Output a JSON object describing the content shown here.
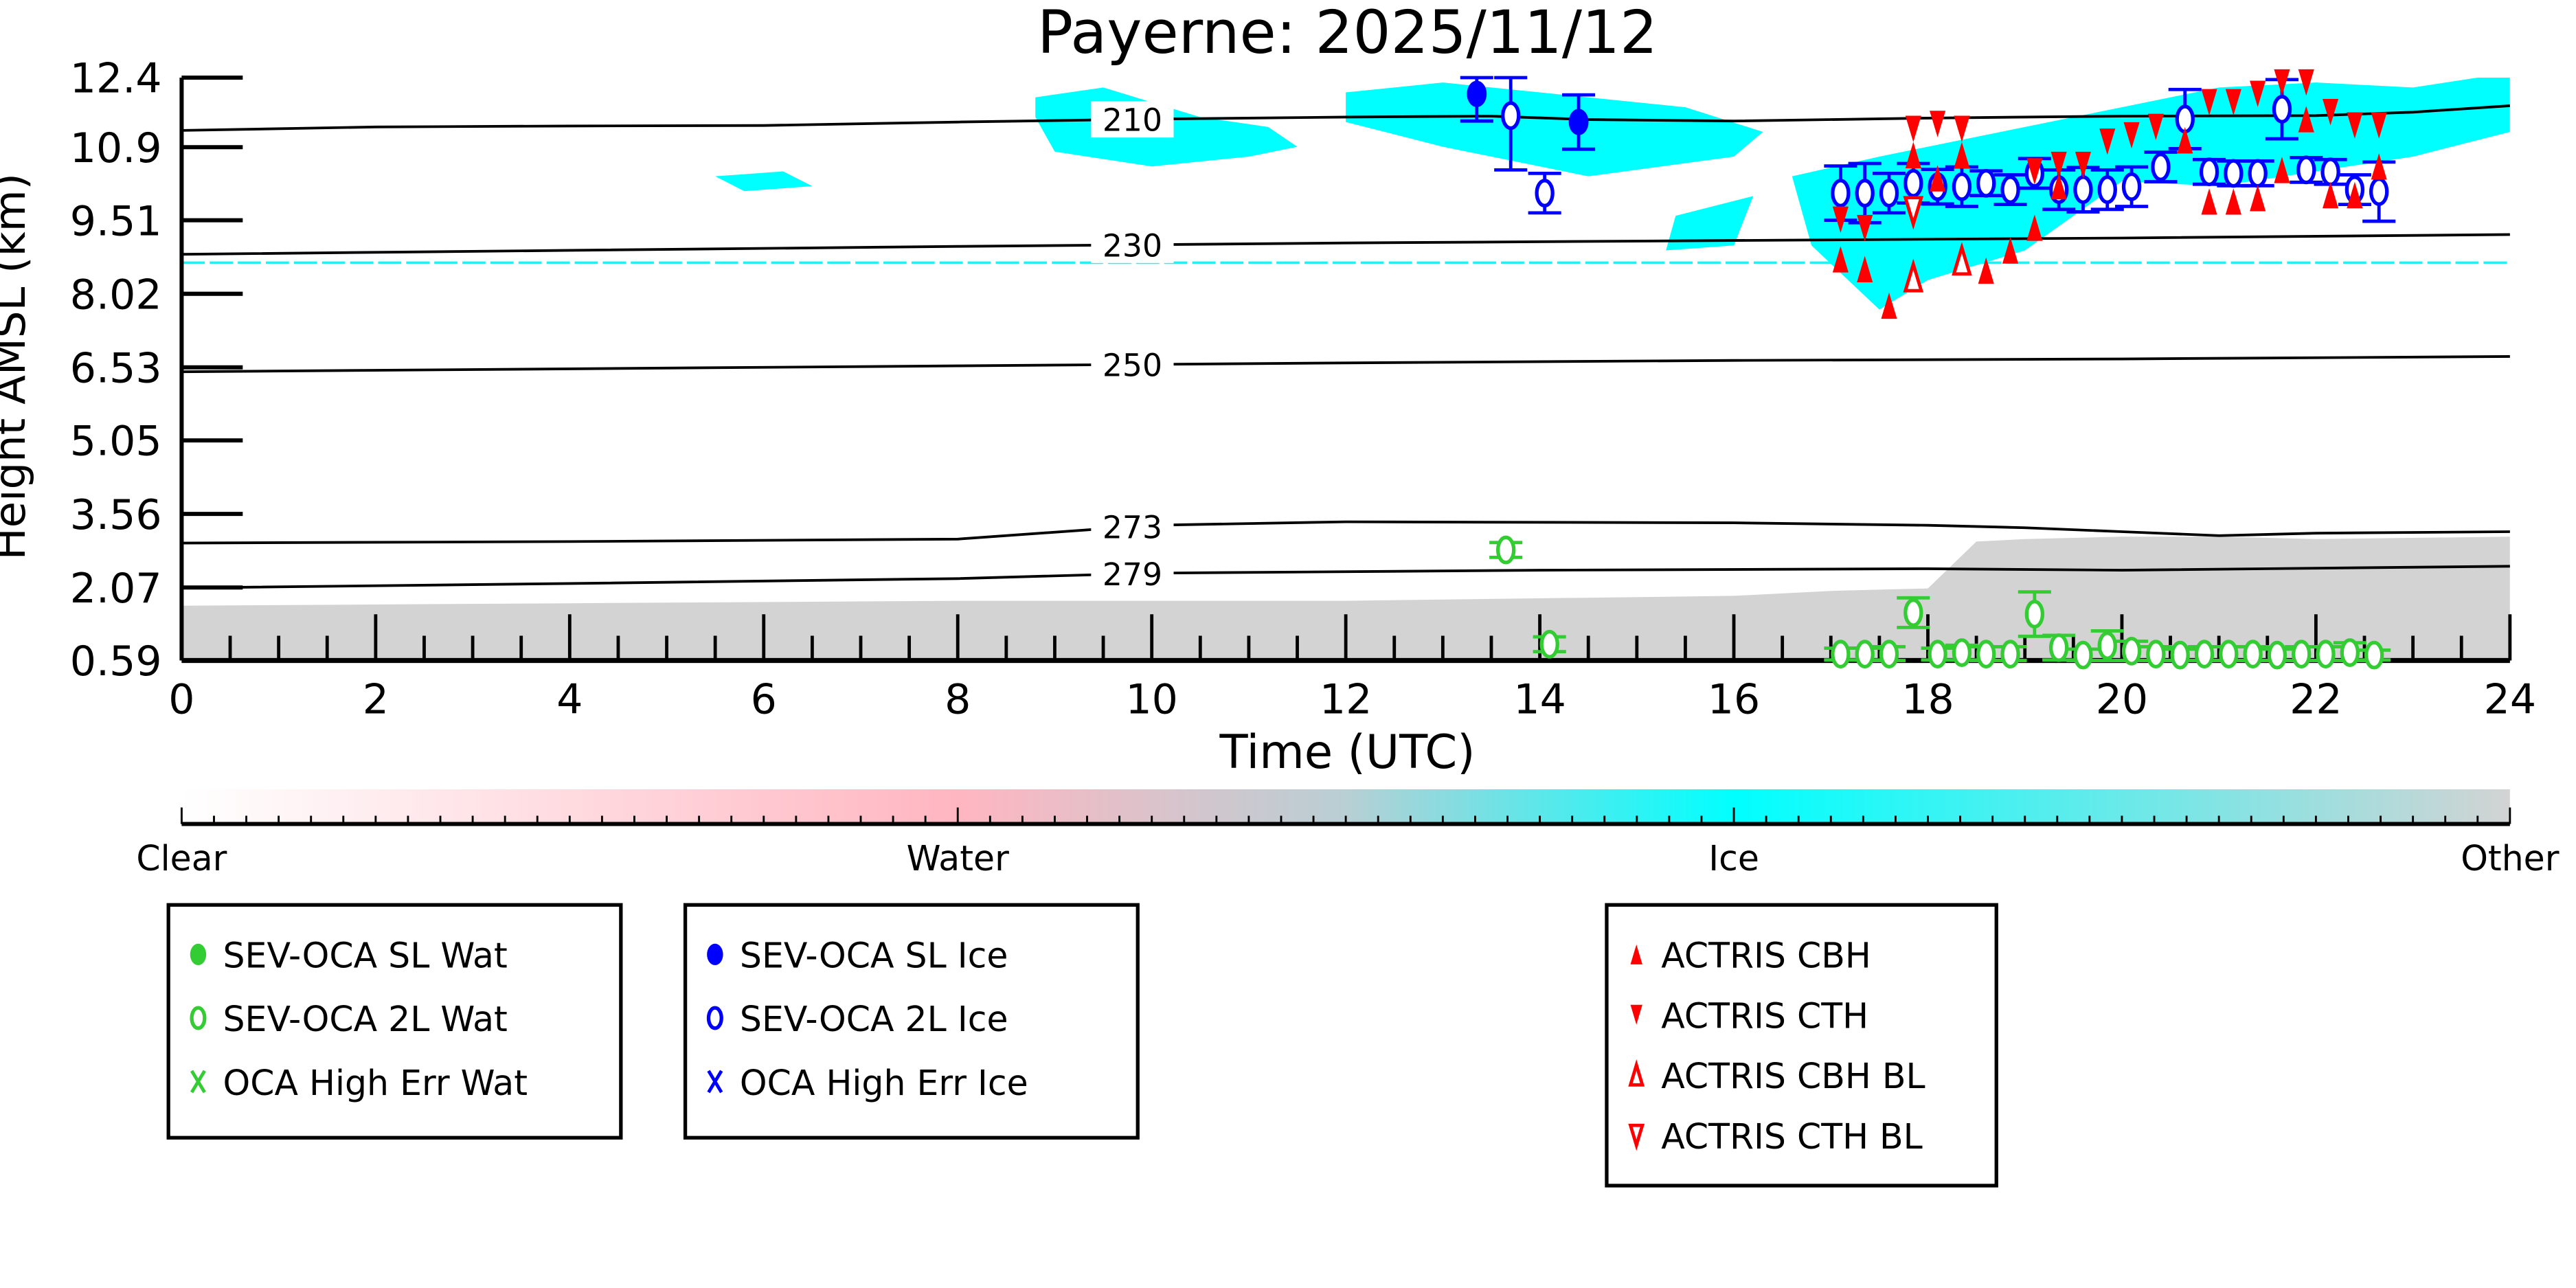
{
  "chart_data": {
    "type": "scatter",
    "title": "Payerne: 2025/11/12",
    "xlabel": "Time (UTC)",
    "ylabel": "Height AMSL (km)",
    "xlim": [
      0,
      24
    ],
    "ylim": [
      0.59,
      12.4
    ],
    "xticks": [
      "0",
      "2",
      "4",
      "6",
      "8",
      "10",
      "12",
      "14",
      "16",
      "18",
      "20",
      "22",
      "24"
    ],
    "yticks": [
      "0.59",
      "2.07",
      "3.56",
      "5.05",
      "6.53",
      "8.02",
      "9.51",
      "10.9",
      "12.4"
    ],
    "yticks_values": [
      0.59,
      2.07,
      3.56,
      5.05,
      6.53,
      8.02,
      9.51,
      10.99,
      12.4
    ],
    "contours": [
      {
        "label": "210",
        "label_t": 9.8,
        "t": [
          0,
          2,
          4,
          6,
          8,
          10,
          12,
          13.5,
          14.5,
          16,
          18,
          20,
          22,
          23,
          24
        ],
        "h": [
          11.33,
          11.4,
          11.42,
          11.43,
          11.5,
          11.56,
          11.6,
          11.62,
          11.55,
          11.52,
          11.58,
          11.62,
          11.63,
          11.7,
          11.83
        ]
      },
      {
        "label": "230",
        "label_t": 9.8,
        "t": [
          0,
          4,
          8,
          12,
          16,
          20,
          24
        ],
        "h": [
          8.82,
          8.9,
          8.98,
          9.05,
          9.1,
          9.15,
          9.22
        ]
      },
      {
        "label": "250",
        "label_t": 9.8,
        "t": [
          0,
          4,
          8,
          12,
          16,
          20,
          24
        ],
        "h": [
          6.44,
          6.5,
          6.56,
          6.62,
          6.67,
          6.7,
          6.75
        ]
      },
      {
        "label": "273",
        "label_t": 9.8,
        "t": [
          0,
          4,
          8,
          10,
          12,
          16,
          18,
          19,
          20,
          21,
          22,
          24
        ],
        "h": [
          2.97,
          3.0,
          3.05,
          3.33,
          3.4,
          3.38,
          3.33,
          3.28,
          3.2,
          3.12,
          3.17,
          3.2
        ]
      },
      {
        "label": "279",
        "label_t": 9.8,
        "t": [
          0,
          4,
          8,
          10,
          14,
          18,
          20,
          24
        ],
        "h": [
          2.06,
          2.15,
          2.25,
          2.36,
          2.42,
          2.45,
          2.42,
          2.5
        ]
      }
    ],
    "mask_regions": [
      {
        "class": "Other",
        "t": [
          0,
          4,
          8,
          12,
          16,
          17,
          18,
          18.5,
          19,
          20,
          21,
          22,
          24,
          24,
          0
        ],
        "h": [
          1.7,
          1.75,
          1.8,
          1.8,
          1.9,
          2.0,
          2.05,
          3.0,
          3.05,
          3.1,
          3.1,
          3.05,
          3.1,
          0.59,
          0.59
        ]
      },
      {
        "class": "Ice",
        "t": [
          8.8,
          9.5,
          10.5,
          11.2,
          11.5,
          11,
          10,
          9,
          8.8
        ],
        "h": [
          12.0,
          12.2,
          11.6,
          11.4,
          11.0,
          10.8,
          10.6,
          10.9,
          11.6
        ]
      },
      {
        "class": "Ice",
        "t": [
          12,
          13,
          14.5,
          15.5,
          16.3,
          16,
          14.5,
          13,
          12
        ],
        "h": [
          12.1,
          12.3,
          12.0,
          11.8,
          11.3,
          10.8,
          10.4,
          11.0,
          11.5
        ]
      },
      {
        "class": "Ice",
        "t": [
          16.6,
          17.5,
          19,
          20,
          21,
          22,
          23,
          24,
          24,
          23,
          22,
          21,
          20,
          19,
          18,
          17.5,
          16.8
        ],
        "h": [
          10.4,
          10.8,
          11.4,
          11.8,
          12.2,
          12.3,
          12.2,
          12.5,
          11.3,
          10.8,
          10.5,
          10.2,
          10.3,
          8.9,
          8.3,
          7.7,
          9.0
        ]
      },
      {
        "class": "Ice",
        "t": [
          5.5,
          6.2,
          6.5,
          5.8
        ],
        "h": [
          10.4,
          10.5,
          10.2,
          10.1
        ]
      },
      {
        "class": "Ice",
        "t": [
          15.4,
          16.2,
          16.0,
          15.3
        ],
        "h": [
          9.6,
          10.0,
          9.0,
          8.9
        ]
      }
    ],
    "ice_line_h": 8.65,
    "series": [
      {
        "name": "SEV-OCA SL Wat",
        "marker": "filled-circle",
        "color": "#33cc33",
        "points": []
      },
      {
        "name": "SEV-OCA 2L Wat",
        "marker": "open-circle",
        "color": "#33cc33",
        "points": [
          {
            "t": 13.65,
            "h": 2.83,
            "err": 0.15
          },
          {
            "t": 14.1,
            "h": 0.92,
            "err": 0.15
          },
          {
            "t": 17.1,
            "h": 0.72,
            "err": 0.12
          },
          {
            "t": 17.35,
            "h": 0.72,
            "err": 0.12
          },
          {
            "t": 17.6,
            "h": 0.72,
            "err": 0.15
          },
          {
            "t": 17.85,
            "h": 1.56,
            "err": 0.3
          },
          {
            "t": 18.1,
            "h": 0.72,
            "err": 0.12
          },
          {
            "t": 18.35,
            "h": 0.75,
            "err": 0.15
          },
          {
            "t": 18.6,
            "h": 0.72,
            "err": 0.15
          },
          {
            "t": 18.85,
            "h": 0.72,
            "err": 0.15
          },
          {
            "t": 19.1,
            "h": 1.53,
            "err": 0.45
          },
          {
            "t": 19.35,
            "h": 0.85,
            "err": 0.25
          },
          {
            "t": 19.6,
            "h": 0.7,
            "err": 0.12
          },
          {
            "t": 19.85,
            "h": 0.89,
            "err": 0.3
          },
          {
            "t": 20.1,
            "h": 0.78,
            "err": 0.2
          },
          {
            "t": 20.35,
            "h": 0.72,
            "err": 0.15
          },
          {
            "t": 20.6,
            "h": 0.7,
            "err": 0.12
          },
          {
            "t": 20.85,
            "h": 0.72,
            "err": 0.15
          },
          {
            "t": 21.1,
            "h": 0.72,
            "err": 0.15
          },
          {
            "t": 21.35,
            "h": 0.72,
            "err": 0.15
          },
          {
            "t": 21.6,
            "h": 0.7,
            "err": 0.12
          },
          {
            "t": 21.85,
            "h": 0.72,
            "err": 0.15
          },
          {
            "t": 22.1,
            "h": 0.72,
            "err": 0.15
          },
          {
            "t": 22.35,
            "h": 0.75,
            "err": 0.2
          },
          {
            "t": 22.6,
            "h": 0.7,
            "err": 0.1
          }
        ]
      },
      {
        "name": "OCA High Err Wat",
        "marker": "x",
        "color": "#33cc33",
        "points": []
      },
      {
        "name": "SEV-OCA SL Ice",
        "marker": "filled-circle",
        "color": "#0000ff",
        "points": [
          {
            "t": 13.35,
            "h": 12.07,
            "err": 0.55
          },
          {
            "t": 14.4,
            "h": 11.5,
            "err": 0.55
          }
        ]
      },
      {
        "name": "SEV-OCA 2L Ice",
        "marker": "open-circle",
        "color": "#0000ff",
        "points": [
          {
            "t": 13.7,
            "h": 11.63,
            "err": 1.1
          },
          {
            "t": 14.05,
            "h": 10.06,
            "err": 0.4
          },
          {
            "t": 17.1,
            "h": 10.06,
            "err": 0.55
          },
          {
            "t": 17.35,
            "h": 10.06,
            "err": 0.6
          },
          {
            "t": 17.6,
            "h": 10.06,
            "err": 0.4
          },
          {
            "t": 17.85,
            "h": 10.26,
            "err": 0.4
          },
          {
            "t": 18.1,
            "h": 10.19,
            "err": 0.35
          },
          {
            "t": 18.35,
            "h": 10.19,
            "err": 0.4
          },
          {
            "t": 18.6,
            "h": 10.26,
            "err": 0.25
          },
          {
            "t": 18.85,
            "h": 10.13,
            "err": 0.3
          },
          {
            "t": 19.1,
            "h": 10.46,
            "err": 0.3
          },
          {
            "t": 19.35,
            "h": 10.13,
            "err": 0.4
          },
          {
            "t": 19.6,
            "h": 10.13,
            "err": 0.45
          },
          {
            "t": 19.85,
            "h": 10.13,
            "err": 0.4
          },
          {
            "t": 20.1,
            "h": 10.19,
            "err": 0.4
          },
          {
            "t": 20.4,
            "h": 10.59,
            "err": 0.3
          },
          {
            "t": 20.65,
            "h": 11.56,
            "err": 0.6
          },
          {
            "t": 20.9,
            "h": 10.49,
            "err": 0.25
          },
          {
            "t": 21.15,
            "h": 10.46,
            "err": 0.25
          },
          {
            "t": 21.4,
            "h": 10.46,
            "err": 0.25
          },
          {
            "t": 21.65,
            "h": 11.76,
            "err": 0.6
          },
          {
            "t": 21.9,
            "h": 10.53,
            "err": 0.25
          },
          {
            "t": 22.15,
            "h": 10.49,
            "err": 0.25
          },
          {
            "t": 22.4,
            "h": 10.13,
            "err": 0.3
          },
          {
            "t": 22.65,
            "h": 10.09,
            "err": 0.6
          }
        ]
      },
      {
        "name": "OCA High Err Ice",
        "marker": "x",
        "color": "#0000ff",
        "points": []
      },
      {
        "name": "ACTRIS CBH",
        "marker": "triangle-up",
        "color": "#ff0000",
        "points": [
          {
            "t": 17.1,
            "h": 8.72
          },
          {
            "t": 17.35,
            "h": 8.52
          },
          {
            "t": 17.6,
            "h": 7.78
          },
          {
            "t": 17.85,
            "h": 10.83
          },
          {
            "t": 18.1,
            "h": 10.36
          },
          {
            "t": 18.35,
            "h": 10.83
          },
          {
            "t": 18.6,
            "h": 8.49
          },
          {
            "t": 18.85,
            "h": 8.9
          },
          {
            "t": 19.1,
            "h": 9.36
          },
          {
            "t": 19.35,
            "h": 10.2
          },
          {
            "t": 20.65,
            "h": 11.13
          },
          {
            "t": 20.9,
            "h": 9.89
          },
          {
            "t": 21.15,
            "h": 9.89
          },
          {
            "t": 21.4,
            "h": 9.96
          },
          {
            "t": 21.65,
            "h": 10.53
          },
          {
            "t": 21.9,
            "h": 11.56
          },
          {
            "t": 22.15,
            "h": 10.02
          },
          {
            "t": 22.4,
            "h": 10.02
          },
          {
            "t": 22.65,
            "h": 10.6
          }
        ]
      },
      {
        "name": "ACTRIS CTH",
        "marker": "triangle-down",
        "color": "#ff0000",
        "points": [
          {
            "t": 17.1,
            "h": 9.52
          },
          {
            "t": 17.35,
            "h": 9.35
          },
          {
            "t": 17.85,
            "h": 11.36
          },
          {
            "t": 18.1,
            "h": 11.46
          },
          {
            "t": 18.35,
            "h": 11.36
          },
          {
            "t": 19.1,
            "h": 10.5
          },
          {
            "t": 19.35,
            "h": 10.63
          },
          {
            "t": 19.6,
            "h": 10.63
          },
          {
            "t": 19.85,
            "h": 11.1
          },
          {
            "t": 20.1,
            "h": 11.23
          },
          {
            "t": 20.35,
            "h": 11.4
          },
          {
            "t": 20.9,
            "h": 11.9
          },
          {
            "t": 21.15,
            "h": 11.9
          },
          {
            "t": 21.4,
            "h": 12.07
          },
          {
            "t": 21.65,
            "h": 12.3
          },
          {
            "t": 21.9,
            "h": 12.3
          },
          {
            "t": 22.15,
            "h": 11.7
          },
          {
            "t": 22.4,
            "h": 11.43
          },
          {
            "t": 22.65,
            "h": 11.43
          }
        ]
      },
      {
        "name": "ACTRIS CBH BL",
        "marker": "open-triangle-up",
        "color": "#ff0000",
        "points": [
          {
            "t": 17.85,
            "h": 8.35
          },
          {
            "t": 18.35,
            "h": 8.69
          }
        ]
      },
      {
        "name": "ACTRIS CTH BL",
        "marker": "open-triangle-down",
        "color": "#ff0000",
        "points": [
          {
            "t": 17.85,
            "h": 9.7
          }
        ]
      }
    ],
    "colorbar": {
      "labels": [
        "Clear",
        "Water",
        "Ice",
        "Other"
      ],
      "colors": [
        "#ffffff",
        "#ffb6c1",
        "#00ffff",
        "#d3d3d3"
      ]
    },
    "legends": [
      [
        "SEV-OCA SL Wat",
        "SEV-OCA 2L Wat",
        "OCA High Err Wat"
      ],
      [
        "SEV-OCA SL Ice",
        "SEV-OCA 2L Ice",
        "OCA High Err Ice"
      ],
      [
        "ACTRIS CBH",
        "ACTRIS CTH",
        "ACTRIS CBH BL",
        "ACTRIS CTH BL"
      ]
    ]
  }
}
